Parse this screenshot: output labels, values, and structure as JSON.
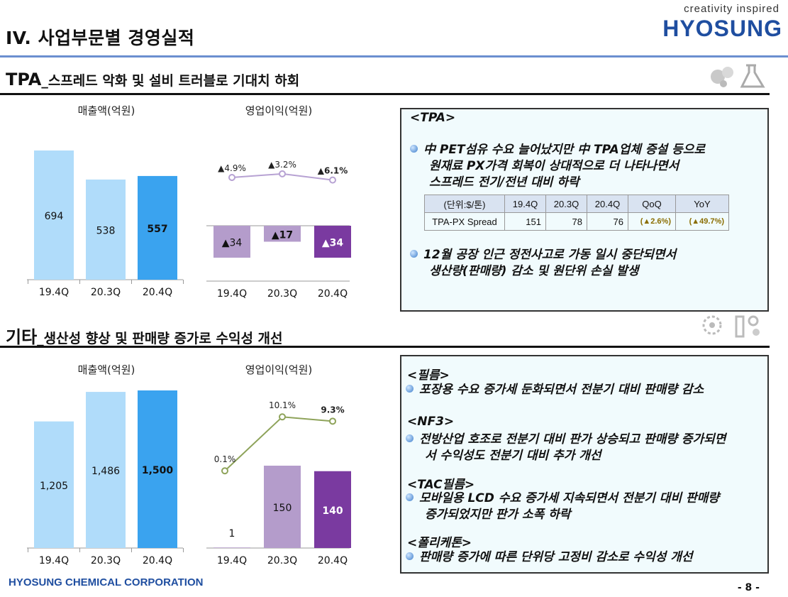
{
  "header": {
    "page_title": "IV. 사업부문별 경영실적",
    "brand_tag": "creativity inspired",
    "brand_name": "HYOSUNG"
  },
  "tpa": {
    "title_main": "TPA",
    "title_sub": "_스프레드 악화 및 설비 트러블로 기대치 하회",
    "box_header": "<TPA>",
    "bullet1_line1": "中 PET섬유 수요 늘어났지만 中 TPA업체 증설 등으로",
    "bullet1_line2": "원재료 PX가격 회복이 상대적으로 더 나타나면서",
    "bullet1_line3": "스프레드 전기/전년 대비 하락",
    "bullet2_line1": "12월 공장 인근 정전사고로  가동 일시 중단되면서",
    "bullet2_line2": "생산량(판매량) 감소 및 원단위 손실 발생",
    "table": {
      "unit": "(단위:$/톤)",
      "headers": [
        "19.4Q",
        "20.3Q",
        "20.4Q",
        "QoQ",
        "YoY"
      ],
      "row_label": "TPA-PX Spread",
      "values": [
        "151",
        "78",
        "76",
        "(▲2.6%)",
        "(▲49.7%)"
      ]
    }
  },
  "other": {
    "title_main": "기타",
    "title_sub": "_생산성 향상 및 판매량 증가로 수익성 개선",
    "film_header": "<필름>",
    "film_text": "포장용 수요 증가세 둔화되면서 전분기 대비 판매량 감소",
    "nf3_header": "<NF3>",
    "nf3_line1": "전방산업 호조로 전분기 대비 판가 상승되고 판매량 증가되면",
    "nf3_line2": "서 수익성도 전분기 대비 추가 개선",
    "tac_header": "<TAC필름>",
    "tac_line1": "모바일용 LCD 수요 증가세 지속되면서 전분기 대비 판매량",
    "tac_line2": "증가되었지만 판가 소폭 하락",
    "poly_header": "<폴리케톤>",
    "poly_text": "판매량 증가에 따른 단위당 고정비 감소로 수익성 개선"
  },
  "footer": {
    "company": "HYOSUNG CHEMICAL CORPORATION",
    "page": "- 8 -"
  },
  "colors": {
    "bar_light": "#b0dcfa",
    "bar_accent": "#3aa3ef",
    "purple_light": "#b49ccb",
    "purple_accent": "#7a3aa0",
    "line_purple": "#b7a2d3",
    "line_green": "#8ea35a"
  },
  "chart_data": [
    {
      "type": "bar",
      "title": "매출액(억원)",
      "categories": [
        "19.4Q",
        "20.3Q",
        "20.4Q"
      ],
      "values": [
        694,
        538,
        557
      ],
      "labels": [
        "694",
        "538",
        "557"
      ]
    },
    {
      "type": "bar",
      "title": "영업이익(억원)",
      "categories": [
        "19.4Q",
        "20.3Q",
        "20.4Q"
      ],
      "values": [
        -34,
        -17,
        -34
      ],
      "labels": [
        "▲34",
        "▲17",
        "▲34"
      ],
      "line": {
        "values": [
          -4.9,
          -3.2,
          -6.1
        ],
        "labels": [
          "▲4.9%",
          "▲3.2%",
          "▲6.1%"
        ]
      }
    },
    {
      "type": "bar",
      "title": "매출액(억원)",
      "categories": [
        "19.4Q",
        "20.3Q",
        "20.4Q"
      ],
      "values": [
        1205,
        1486,
        1500
      ],
      "labels": [
        "1,205",
        "1,486",
        "1,500"
      ]
    },
    {
      "type": "bar",
      "title": "영업이익(억원)",
      "categories": [
        "19.4Q",
        "20.3Q",
        "20.4Q"
      ],
      "values": [
        1,
        150,
        140
      ],
      "labels": [
        "1",
        "150",
        "140"
      ],
      "line": {
        "values": [
          0.1,
          10.1,
          9.3
        ],
        "labels": [
          "0.1%",
          "10.1%",
          "9.3%"
        ]
      }
    }
  ]
}
